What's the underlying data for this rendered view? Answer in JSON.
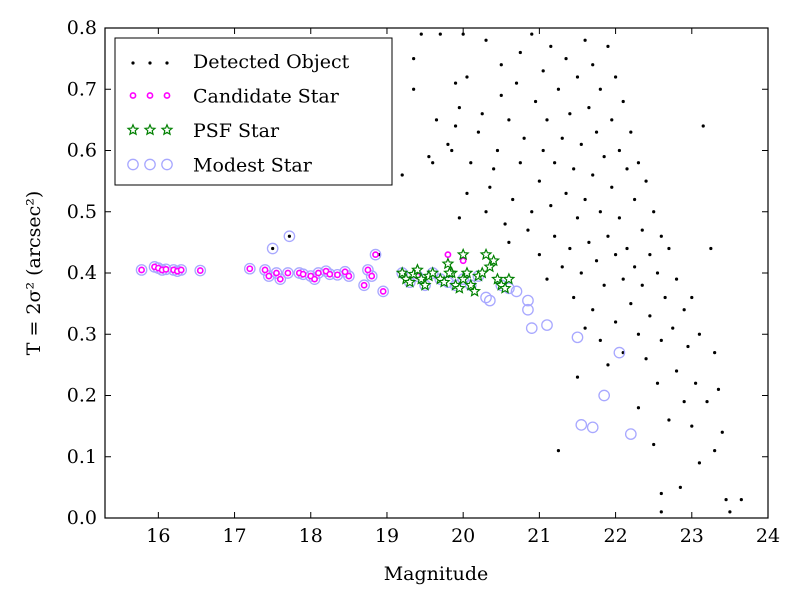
{
  "chart_data": {
    "type": "scatter",
    "xlabel": "Magnitude",
    "ylabel": "T = 2σ² (arcsec²)",
    "xlim": [
      15.3,
      24.0
    ],
    "ylim": [
      0.0,
      0.8
    ],
    "xticks": [
      "16",
      "17",
      "18",
      "19",
      "20",
      "21",
      "22",
      "23",
      "24"
    ],
    "yticks": [
      "0.0",
      "0.1",
      "0.2",
      "0.3",
      "0.4",
      "0.5",
      "0.6",
      "0.7",
      "0.8"
    ],
    "grid": false,
    "legend_position": "top-left",
    "series": [
      {
        "name": "Detected Object",
        "marker": "dot",
        "color": "#000000",
        "points": [
          [
            17.5,
            0.44
          ],
          [
            17.72,
            0.46
          ],
          [
            18.9,
            0.43
          ],
          [
            19.2,
            0.56
          ],
          [
            19.35,
            0.7
          ],
          [
            19.35,
            0.75
          ],
          [
            19.45,
            0.79
          ],
          [
            19.55,
            0.59
          ],
          [
            19.6,
            0.58
          ],
          [
            19.65,
            0.65
          ],
          [
            19.7,
            0.79
          ],
          [
            19.8,
            0.61
          ],
          [
            19.85,
            0.6
          ],
          [
            19.9,
            0.64
          ],
          [
            19.95,
            0.67
          ],
          [
            19.9,
            0.71
          ],
          [
            20.0,
            0.79
          ],
          [
            20.05,
            0.72
          ],
          [
            19.95,
            0.49
          ],
          [
            20.05,
            0.53
          ],
          [
            20.1,
            0.58
          ],
          [
            20.2,
            0.63
          ],
          [
            20.25,
            0.66
          ],
          [
            20.3,
            0.78
          ],
          [
            20.3,
            0.5
          ],
          [
            20.35,
            0.54
          ],
          [
            20.4,
            0.57
          ],
          [
            20.45,
            0.6
          ],
          [
            20.5,
            0.69
          ],
          [
            20.5,
            0.74
          ],
          [
            20.55,
            0.48
          ],
          [
            20.6,
            0.45
          ],
          [
            20.65,
            0.52
          ],
          [
            20.6,
            0.65
          ],
          [
            20.7,
            0.71
          ],
          [
            20.75,
            0.76
          ],
          [
            20.75,
            0.58
          ],
          [
            20.8,
            0.62
          ],
          [
            20.85,
            0.47
          ],
          [
            20.9,
            0.5
          ],
          [
            20.9,
            0.79
          ],
          [
            20.95,
            0.68
          ],
          [
            21.0,
            0.55
          ],
          [
            21.0,
            0.43
          ],
          [
            21.05,
            0.6
          ],
          [
            21.05,
            0.73
          ],
          [
            21.1,
            0.39
          ],
          [
            21.1,
            0.65
          ],
          [
            21.15,
            0.51
          ],
          [
            21.15,
            0.77
          ],
          [
            21.2,
            0.46
          ],
          [
            21.2,
            0.58
          ],
          [
            21.25,
            0.11
          ],
          [
            21.25,
            0.7
          ],
          [
            21.3,
            0.62
          ],
          [
            21.3,
            0.41
          ],
          [
            21.35,
            0.53
          ],
          [
            21.35,
            0.75
          ],
          [
            21.4,
            0.44
          ],
          [
            21.4,
            0.66
          ],
          [
            21.45,
            0.57
          ],
          [
            21.45,
            0.36
          ],
          [
            21.5,
            0.72
          ],
          [
            21.5,
            0.49
          ],
          [
            21.5,
            0.23
          ],
          [
            21.55,
            0.61
          ],
          [
            21.55,
            0.4
          ],
          [
            21.6,
            0.78
          ],
          [
            21.6,
            0.52
          ],
          [
            21.6,
            0.31
          ],
          [
            21.65,
            0.67
          ],
          [
            21.65,
            0.45
          ],
          [
            21.7,
            0.56
          ],
          [
            21.7,
            0.34
          ],
          [
            21.7,
            0.74
          ],
          [
            21.75,
            0.63
          ],
          [
            21.75,
            0.42
          ],
          [
            21.8,
            0.5
          ],
          [
            21.8,
            0.29
          ],
          [
            21.8,
            0.7
          ],
          [
            21.85,
            0.59
          ],
          [
            21.85,
            0.38
          ],
          [
            21.9,
            0.77
          ],
          [
            21.9,
            0.46
          ],
          [
            21.9,
            0.25
          ],
          [
            21.95,
            0.65
          ],
          [
            21.95,
            0.54
          ],
          [
            22.0,
            0.43
          ],
          [
            22.0,
            0.32
          ],
          [
            22.0,
            0.72
          ],
          [
            22.05,
            0.6
          ],
          [
            22.05,
            0.49
          ],
          [
            22.1,
            0.39
          ],
          [
            22.1,
            0.68
          ],
          [
            22.1,
            0.27
          ],
          [
            22.15,
            0.57
          ],
          [
            22.15,
            0.44
          ],
          [
            22.2,
            0.35
          ],
          [
            22.2,
            0.63
          ],
          [
            22.25,
            0.52
          ],
          [
            22.25,
            0.41
          ],
          [
            22.3,
            0.3
          ],
          [
            22.3,
            0.58
          ],
          [
            22.3,
            0.18
          ],
          [
            22.35,
            0.47
          ],
          [
            22.35,
            0.38
          ],
          [
            22.4,
            0.55
          ],
          [
            22.4,
            0.26
          ],
          [
            22.45,
            0.43
          ],
          [
            22.45,
            0.33
          ],
          [
            22.5,
            0.5
          ],
          [
            22.5,
            0.12
          ],
          [
            22.55,
            0.4
          ],
          [
            22.55,
            0.22
          ],
          [
            22.6,
            0.46
          ],
          [
            22.6,
            0.29
          ],
          [
            22.6,
            0.04
          ],
          [
            22.65,
            0.36
          ],
          [
            22.7,
            0.44
          ],
          [
            22.7,
            0.16
          ],
          [
            22.75,
            0.31
          ],
          [
            22.8,
            0.39
          ],
          [
            22.8,
            0.24
          ],
          [
            22.85,
            0.05
          ],
          [
            22.9,
            0.34
          ],
          [
            22.9,
            0.19
          ],
          [
            22.95,
            0.28
          ],
          [
            23.0,
            0.36
          ],
          [
            23.0,
            0.15
          ],
          [
            23.05,
            0.22
          ],
          [
            23.1,
            0.3
          ],
          [
            23.1,
            0.09
          ],
          [
            23.15,
            0.64
          ],
          [
            23.2,
            0.19
          ],
          [
            23.25,
            0.44
          ],
          [
            23.3,
            0.27
          ],
          [
            23.3,
            0.11
          ],
          [
            23.35,
            0.21
          ],
          [
            23.4,
            0.14
          ],
          [
            23.45,
            0.03
          ],
          [
            23.5,
            0.01
          ],
          [
            23.65,
            0.03
          ],
          [
            22.6,
            0.01
          ]
        ]
      },
      {
        "name": "Candidate Star",
        "marker": "circle-small",
        "color": "#ff00ff",
        "points": [
          [
            15.78,
            0.405
          ],
          [
            15.95,
            0.41
          ],
          [
            16.0,
            0.408
          ],
          [
            16.05,
            0.405
          ],
          [
            16.1,
            0.406
          ],
          [
            16.2,
            0.405
          ],
          [
            16.25,
            0.403
          ],
          [
            16.3,
            0.405
          ],
          [
            16.55,
            0.404
          ],
          [
            17.2,
            0.407
          ],
          [
            17.4,
            0.405
          ],
          [
            17.45,
            0.395
          ],
          [
            17.55,
            0.4
          ],
          [
            17.6,
            0.39
          ],
          [
            17.7,
            0.4
          ],
          [
            17.85,
            0.4
          ],
          [
            17.9,
            0.398
          ],
          [
            18.0,
            0.395
          ],
          [
            18.05,
            0.39
          ],
          [
            18.1,
            0.4
          ],
          [
            18.2,
            0.403
          ],
          [
            18.25,
            0.398
          ],
          [
            18.35,
            0.397
          ],
          [
            18.45,
            0.402
          ],
          [
            18.5,
            0.395
          ],
          [
            18.7,
            0.38
          ],
          [
            18.75,
            0.405
          ],
          [
            18.8,
            0.395
          ],
          [
            18.85,
            0.43
          ],
          [
            18.95,
            0.37
          ],
          [
            19.2,
            0.4
          ],
          [
            19.4,
            0.395
          ],
          [
            19.8,
            0.43
          ],
          [
            20.0,
            0.42
          ]
        ]
      },
      {
        "name": "PSF Star",
        "marker": "star",
        "color": "#008000",
        "points": [
          [
            19.2,
            0.4
          ],
          [
            19.25,
            0.39
          ],
          [
            19.3,
            0.385
          ],
          [
            19.35,
            0.398
          ],
          [
            19.4,
            0.405
          ],
          [
            19.45,
            0.39
          ],
          [
            19.5,
            0.38
          ],
          [
            19.55,
            0.395
          ],
          [
            19.6,
            0.4
          ],
          [
            19.7,
            0.39
          ],
          [
            19.75,
            0.385
          ],
          [
            19.8,
            0.415
          ],
          [
            19.85,
            0.4
          ],
          [
            19.9,
            0.38
          ],
          [
            19.95,
            0.375
          ],
          [
            20.0,
            0.39
          ],
          [
            20.05,
            0.4
          ],
          [
            20.1,
            0.38
          ],
          [
            20.15,
            0.37
          ],
          [
            20.2,
            0.395
          ],
          [
            20.25,
            0.4
          ],
          [
            20.3,
            0.43
          ],
          [
            20.35,
            0.41
          ],
          [
            20.4,
            0.42
          ],
          [
            20.45,
            0.39
          ],
          [
            20.5,
            0.38
          ],
          [
            20.55,
            0.375
          ],
          [
            20.6,
            0.39
          ],
          [
            20.0,
            0.43
          ],
          [
            19.82,
            0.4
          ]
        ]
      },
      {
        "name": "Modest Star",
        "marker": "circle-large",
        "color": "#a8a8ff",
        "points": [
          [
            15.78,
            0.405
          ],
          [
            15.95,
            0.41
          ],
          [
            16.0,
            0.408
          ],
          [
            16.05,
            0.405
          ],
          [
            16.1,
            0.406
          ],
          [
            16.2,
            0.405
          ],
          [
            16.25,
            0.403
          ],
          [
            16.3,
            0.405
          ],
          [
            16.55,
            0.404
          ],
          [
            17.2,
            0.407
          ],
          [
            17.4,
            0.405
          ],
          [
            17.45,
            0.395
          ],
          [
            17.5,
            0.44
          ],
          [
            17.55,
            0.4
          ],
          [
            17.6,
            0.39
          ],
          [
            17.7,
            0.4
          ],
          [
            17.72,
            0.46
          ],
          [
            17.85,
            0.4
          ],
          [
            17.9,
            0.398
          ],
          [
            18.0,
            0.395
          ],
          [
            18.05,
            0.39
          ],
          [
            18.1,
            0.4
          ],
          [
            18.2,
            0.403
          ],
          [
            18.25,
            0.398
          ],
          [
            18.35,
            0.397
          ],
          [
            18.45,
            0.402
          ],
          [
            18.5,
            0.395
          ],
          [
            18.7,
            0.38
          ],
          [
            18.75,
            0.405
          ],
          [
            18.8,
            0.395
          ],
          [
            18.85,
            0.43
          ],
          [
            18.95,
            0.37
          ],
          [
            19.2,
            0.4
          ],
          [
            19.3,
            0.385
          ],
          [
            19.4,
            0.395
          ],
          [
            19.5,
            0.38
          ],
          [
            19.6,
            0.4
          ],
          [
            19.7,
            0.39
          ],
          [
            19.8,
            0.385
          ],
          [
            19.9,
            0.38
          ],
          [
            20.0,
            0.39
          ],
          [
            20.1,
            0.38
          ],
          [
            20.2,
            0.395
          ],
          [
            20.3,
            0.36
          ],
          [
            20.35,
            0.355
          ],
          [
            20.5,
            0.38
          ],
          [
            20.6,
            0.375
          ],
          [
            20.7,
            0.37
          ],
          [
            20.85,
            0.355
          ],
          [
            20.85,
            0.34
          ],
          [
            20.9,
            0.31
          ],
          [
            21.1,
            0.315
          ],
          [
            21.5,
            0.295
          ],
          [
            21.55,
            0.152
          ],
          [
            21.7,
            0.148
          ],
          [
            21.85,
            0.2
          ],
          [
            22.05,
            0.27
          ],
          [
            22.2,
            0.137
          ]
        ]
      }
    ]
  }
}
